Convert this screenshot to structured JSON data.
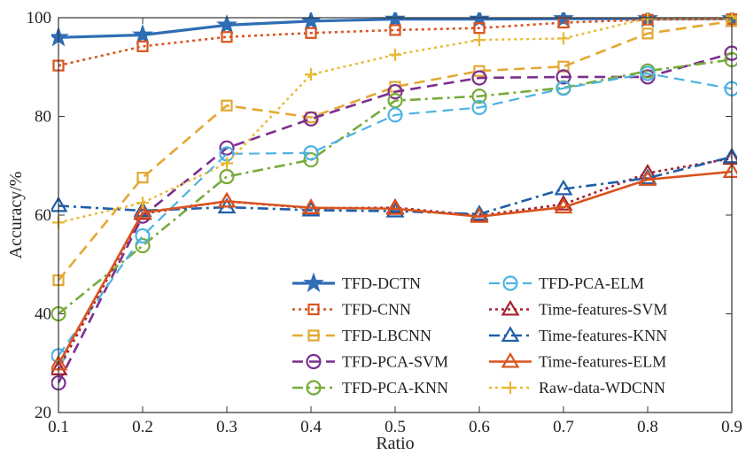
{
  "chart_data": {
    "type": "line",
    "xlabel": "Ratio",
    "ylabel": "Accuracy/%",
    "xlim": [
      0.1,
      0.9
    ],
    "ylim": [
      20,
      100
    ],
    "xticks": [
      "0.1",
      "0.2",
      "0.3",
      "0.4",
      "0.5",
      "0.6",
      "0.7",
      "0.8",
      "0.9"
    ],
    "yticks": [
      "20",
      "40",
      "60",
      "80",
      "100"
    ],
    "grid": false,
    "legend_position": "bottom-right",
    "x": [
      0.1,
      0.2,
      0.3,
      0.4,
      0.5,
      0.6,
      0.7,
      0.8,
      0.9
    ],
    "series": [
      {
        "name": "TFD-DCTN",
        "color": "#2f6db5",
        "dash": "solid",
        "width": 3.2,
        "marker": "star",
        "values": [
          96.0,
          96.5,
          98.5,
          99.3,
          99.7,
          99.7,
          99.8,
          99.8,
          99.8
        ]
      },
      {
        "name": "TFD-CNN",
        "color": "#d9531e",
        "dash": "dot",
        "width": 2.6,
        "marker": "square",
        "values": [
          90.3,
          94.2,
          96.1,
          96.9,
          97.5,
          97.9,
          99.0,
          99.6,
          99.7
        ]
      },
      {
        "name": "TFD-LBCNN",
        "color": "#e3a833",
        "dash": "dash",
        "width": 2.6,
        "marker": "square",
        "values": [
          46.8,
          67.6,
          82.2,
          79.8,
          86.0,
          89.2,
          90.1,
          96.8,
          99.3
        ]
      },
      {
        "name": "TFD-PCA-SVM",
        "color": "#7b2f8e",
        "dash": "dash",
        "width": 2.6,
        "marker": "circle",
        "values": [
          26.0,
          59.8,
          73.6,
          79.5,
          85.0,
          87.8,
          88.0,
          88.0,
          92.8
        ]
      },
      {
        "name": "TFD-PCA-KNN",
        "color": "#77ab3a",
        "dash": "dashdot",
        "width": 2.6,
        "marker": "circle",
        "values": [
          40.0,
          53.8,
          67.8,
          71.2,
          83.2,
          84.1,
          85.8,
          89.2,
          91.5
        ]
      },
      {
        "name": "TFD-PCA-ELM",
        "color": "#4db2e3",
        "dash": "dash",
        "width": 2.2,
        "marker": "circle",
        "values": [
          31.5,
          55.8,
          72.4,
          72.6,
          80.3,
          81.8,
          85.7,
          88.7,
          85.6
        ]
      },
      {
        "name": "Time-features-SVM",
        "color": "#a3202f",
        "dash": "dot",
        "width": 2.6,
        "marker": "triangle",
        "values": [
          28.8,
          60.3,
          62.8,
          61.4,
          61.5,
          59.9,
          62.2,
          68.5,
          71.5
        ]
      },
      {
        "name": "Time-features-KNN",
        "color": "#1f5ea8",
        "dash": "dashdot",
        "width": 2.6,
        "marker": "triangle",
        "values": [
          61.9,
          60.9,
          61.6,
          61.0,
          60.8,
          60.2,
          65.3,
          67.5,
          71.8
        ]
      },
      {
        "name": "Time-features-ELM",
        "color": "#d9531e",
        "dash": "solid",
        "width": 2.6,
        "marker": "triangle",
        "values": [
          29.8,
          60.5,
          62.8,
          61.5,
          61.3,
          59.7,
          61.6,
          67.2,
          68.8
        ]
      },
      {
        "name": "Raw-data-WDCNN",
        "color": "#e8b830",
        "dash": "dot",
        "width": 2.4,
        "marker": "plus",
        "values": [
          58.5,
          62.5,
          70.5,
          88.5,
          92.5,
          95.5,
          95.8,
          99.9,
          99.9
        ]
      }
    ]
  }
}
